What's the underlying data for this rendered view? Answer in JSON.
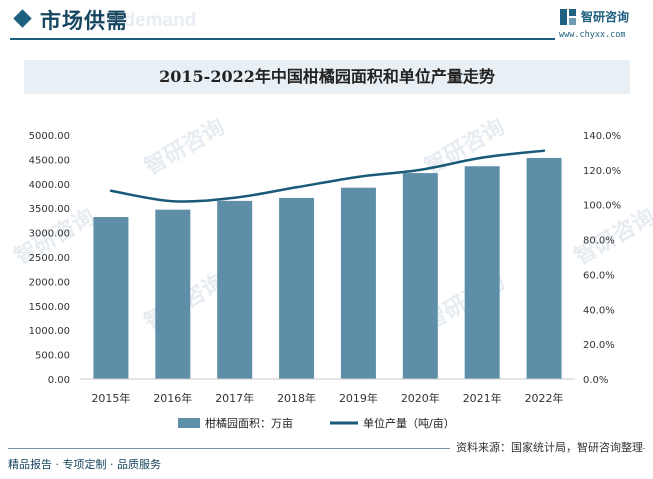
{
  "header": {
    "section_title": "市场供需",
    "section_bg_text": "nd demand",
    "brand_name": "智研咨询",
    "brand_url": "www.chyxx.com"
  },
  "watermark": "智研咨询",
  "colors": {
    "bar": "#5f8fa8",
    "line": "#1a5a78",
    "accent": "#1f5f7f"
  },
  "chart_data": {
    "type": "bar",
    "title": "2015-2022年中国柑橘园面积和单位产量走势",
    "categories": [
      "2015年",
      "2016年",
      "2017年",
      "2018年",
      "2019年",
      "2020年",
      "2021年",
      "2022年"
    ],
    "series": [
      {
        "name": "柑橘园面积：万亩",
        "type": "bar",
        "axis": "left",
        "values": [
          3320,
          3470,
          3650,
          3710,
          3920,
          4220,
          4360,
          4530
        ]
      },
      {
        "name": "单位产量（吨/亩）",
        "type": "line",
        "axis": "right",
        "values": [
          1.08,
          1.02,
          1.04,
          1.1,
          1.16,
          1.2,
          1.27,
          1.31
        ]
      }
    ],
    "y_left": {
      "min": 0,
      "max": 5000,
      "step": 500,
      "tick_labels": [
        "0.00",
        "500.00",
        "1000.00",
        "1500.00",
        "2000.00",
        "2500.00",
        "3000.00",
        "3500.00",
        "4000.00",
        "4500.00",
        "5000.00"
      ]
    },
    "y_right": {
      "min": 0,
      "max": 1.4,
      "step": 0.2,
      "tick_labels": [
        "0.0%",
        "20.0%",
        "40.0%",
        "60.0%",
        "80.0%",
        "100.0%",
        "120.0%",
        "140.0%"
      ]
    },
    "legend_position": "bottom",
    "grid": false
  },
  "footer": {
    "source": "资料来源：国家统计局，智研咨询整理",
    "tagline": "精品报告 · 专项定制 · 品质服务"
  }
}
